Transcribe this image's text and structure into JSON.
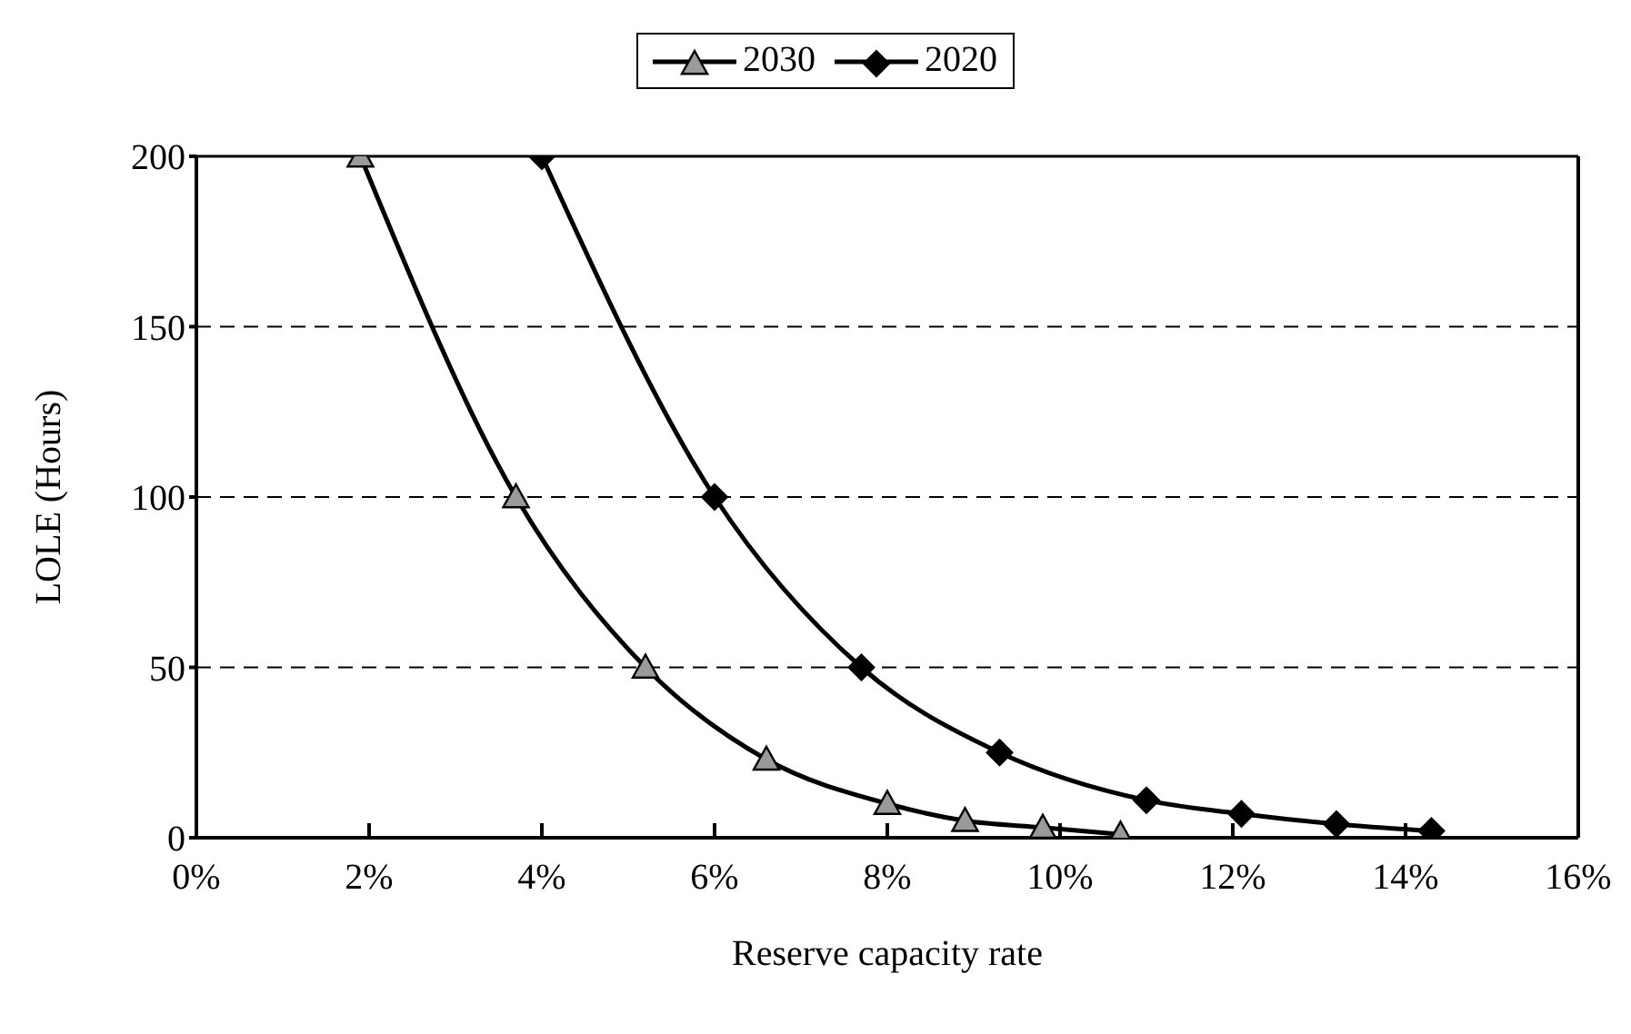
{
  "chart_data": {
    "type": "line",
    "xlabel": "Reserve capacity rate",
    "ylabel": "LOLE (Hours)",
    "xlim": [
      0,
      16
    ],
    "xticks": [
      {
        "value": 0,
        "label": "0%"
      },
      {
        "value": 2,
        "label": "2%"
      },
      {
        "value": 4,
        "label": "4%"
      },
      {
        "value": 6,
        "label": "6%"
      },
      {
        "value": 8,
        "label": "8%"
      },
      {
        "value": 10,
        "label": "10%"
      },
      {
        "value": 12,
        "label": "12%"
      },
      {
        "value": 14,
        "label": "14%"
      },
      {
        "value": 16,
        "label": "16%"
      }
    ],
    "ylim": [
      0,
      200
    ],
    "yticks": [
      0,
      50,
      100,
      150,
      200
    ],
    "grid": "y",
    "legend": "top",
    "line_style": "solid",
    "series": [
      {
        "name": "2030",
        "color": "#000000",
        "marker": "triangle",
        "x": [
          1.9,
          3.7,
          5.2,
          6.6,
          8.0,
          8.9,
          9.8,
          10.7
        ],
        "values": [
          200,
          100,
          50,
          23,
          10,
          5,
          3,
          1
        ]
      },
      {
        "name": "2020",
        "color": "#000000",
        "marker": "diamond",
        "x": [
          4.0,
          6.0,
          7.7,
          9.3,
          11.0,
          12.1,
          13.2,
          14.3
        ],
        "values": [
          200,
          100,
          50,
          25,
          11,
          7,
          4,
          2
        ]
      }
    ]
  }
}
